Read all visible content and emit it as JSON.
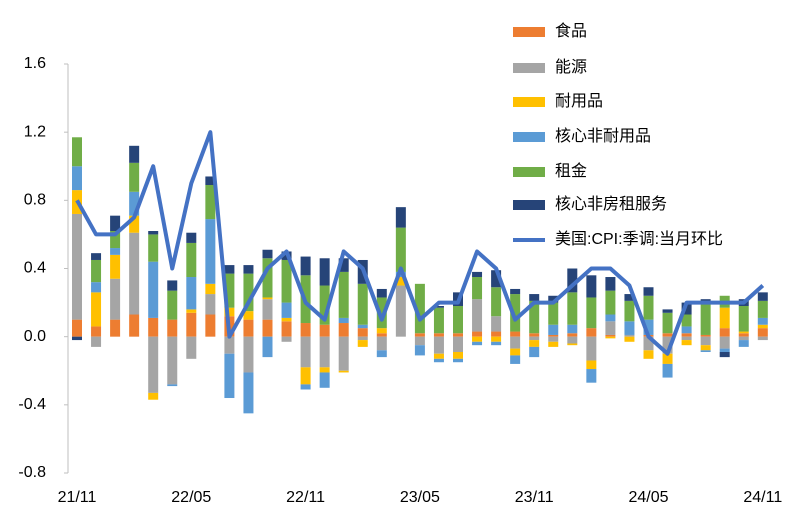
{
  "chart_data": {
    "type": "bar",
    "categories": [
      "21/11",
      null,
      null,
      null,
      null,
      null,
      "22/05",
      null,
      null,
      null,
      null,
      null,
      "22/11",
      null,
      null,
      null,
      null,
      null,
      "23/05",
      null,
      null,
      null,
      null,
      null,
      "23/11",
      null,
      null,
      null,
      null,
      null,
      "24/05",
      null,
      null,
      null,
      null,
      null,
      "24/11"
    ],
    "ylim": [
      -0.8,
      1.6
    ],
    "yticks": [
      -0.8,
      -0.4,
      {
        "value": 0,
        "label": "0.0"
      },
      0.4,
      0.8,
      1.2,
      1.6
    ],
    "series": [
      {
        "name": "食品",
        "color": "#ed7d31",
        "values": [
          0.1,
          0.06,
          0.1,
          0.13,
          0.11,
          0.1,
          0.14,
          0.13,
          0.12,
          0.1,
          0.1,
          0.09,
          0.08,
          0.07,
          0.08,
          0.05,
          0.02,
          0.0,
          0.02,
          0.02,
          0.02,
          0.03,
          0.03,
          0.03,
          0.02,
          0.01,
          0.02,
          0.05,
          0.01,
          0.0,
          0.01,
          0.02,
          0.02,
          0.01,
          0.05,
          0.02,
          0.05
        ]
      },
      {
        "name": "能源",
        "color": "#a5a5a5",
        "values": [
          0.62,
          -0.06,
          0.24,
          0.48,
          -0.33,
          -0.28,
          -0.13,
          0.12,
          -0.1,
          -0.21,
          0.12,
          -0.03,
          -0.18,
          -0.18,
          -0.2,
          -0.02,
          -0.08,
          0.3,
          -0.05,
          -0.1,
          -0.09,
          0.19,
          0.09,
          -0.07,
          -0.02,
          -0.03,
          -0.04,
          -0.14,
          0.08,
          0.01,
          -0.08,
          -0.1,
          -0.02,
          -0.05,
          -0.07,
          -0.02,
          -0.02
        ]
      },
      {
        "name": "耐用品",
        "color": "#ffc000",
        "values": [
          0.14,
          0.2,
          0.14,
          0.1,
          -0.04,
          0.0,
          0.02,
          0.06,
          0.05,
          0.05,
          0.01,
          0.02,
          -0.1,
          -0.03,
          -0.01,
          -0.04,
          0.03,
          0.05,
          0.0,
          -0.03,
          -0.04,
          -0.03,
          -0.03,
          -0.04,
          -0.04,
          -0.03,
          -0.01,
          -0.05,
          -0.01,
          -0.03,
          -0.05,
          -0.06,
          -0.03,
          -0.03,
          0.12,
          0.01,
          0.02
        ]
      },
      {
        "name": "核心非耐用品",
        "color": "#5b9bd5",
        "values": [
          0.14,
          0.06,
          0.04,
          0.14,
          0.33,
          -0.01,
          0.19,
          0.38,
          -0.26,
          -0.24,
          -0.12,
          0.09,
          -0.03,
          -0.09,
          0.03,
          0.02,
          -0.04,
          0.03,
          -0.06,
          -0.02,
          -0.02,
          -0.02,
          -0.02,
          -0.05,
          -0.06,
          0.06,
          0.05,
          -0.08,
          0.04,
          0.08,
          0.09,
          -0.08,
          0.04,
          -0.01,
          -0.02,
          -0.04,
          0.04
        ]
      },
      {
        "name": "租金",
        "color": "#70ad47",
        "values": [
          0.17,
          0.13,
          0.1,
          0.17,
          0.16,
          0.17,
          0.2,
          0.2,
          0.2,
          0.22,
          0.23,
          0.25,
          0.28,
          0.23,
          0.27,
          0.24,
          0.18,
          0.26,
          0.29,
          0.15,
          0.16,
          0.13,
          0.17,
          0.22,
          0.19,
          0.13,
          0.19,
          0.18,
          0.14,
          0.12,
          0.14,
          0.12,
          0.07,
          0.19,
          0.07,
          0.15,
          0.1
        ]
      },
      {
        "name": "核心非房租服务",
        "color": "#264478",
        "values": [
          -0.02,
          0.04,
          0.09,
          0.1,
          0.02,
          0.06,
          0.06,
          0.05,
          0.05,
          0.05,
          0.05,
          0.05,
          0.11,
          0.16,
          0.08,
          0.14,
          0.05,
          0.12,
          0.0,
          0.01,
          0.08,
          0.03,
          0.1,
          0.03,
          0.04,
          0.04,
          0.14,
          0.13,
          0.08,
          0.04,
          0.05,
          0.02,
          0.07,
          0.02,
          -0.03,
          0.04,
          0.05
        ]
      },
      {
        "name": "美国:CPI:季调:当月环比",
        "type": "line",
        "color": "#4472c4",
        "values": [
          0.8,
          0.6,
          0.6,
          0.7,
          1.0,
          0.4,
          0.9,
          1.2,
          0.0,
          0.2,
          0.4,
          0.5,
          0.2,
          0.1,
          0.5,
          0.4,
          0.1,
          0.4,
          0.1,
          0.2,
          0.2,
          0.5,
          0.4,
          0.1,
          0.2,
          0.2,
          0.3,
          0.4,
          0.4,
          0.3,
          0.0,
          -0.1,
          0.2,
          0.2,
          0.2,
          0.2,
          0.3
        ]
      }
    ]
  }
}
